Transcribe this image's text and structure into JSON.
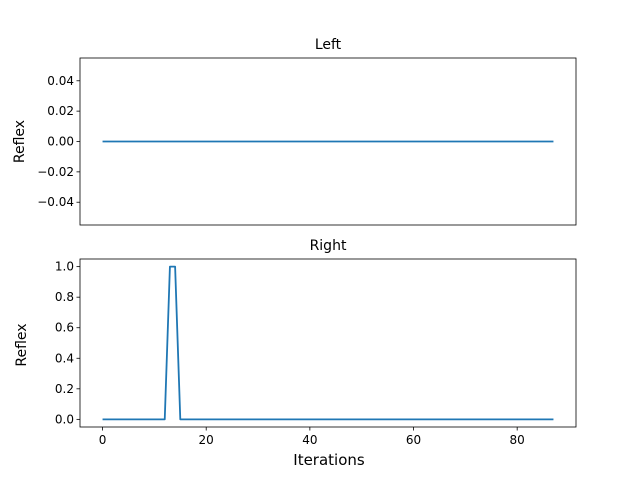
{
  "chart_data": [
    {
      "type": "line",
      "title": "Left",
      "xlabel": "",
      "ylabel": "Reflex",
      "xlim": [
        -4.35,
        91.35
      ],
      "ylim": [
        -0.055,
        0.055
      ],
      "xticks": [],
      "yticks": [
        -0.04,
        -0.02,
        0.0,
        0.02,
        0.04
      ],
      "ytick_labels": [
        "−0.04",
        "−0.02",
        "0.00",
        "0.02",
        "0.04"
      ],
      "grid": false,
      "series": [
        {
          "color": "#1f77b4",
          "x": [
            0,
            87
          ],
          "y": [
            0,
            0
          ]
        }
      ]
    },
    {
      "type": "line",
      "title": "Right",
      "xlabel": "Iterations",
      "ylabel": "Reflex",
      "xlim": [
        -4.35,
        91.35
      ],
      "ylim": [
        -0.05,
        1.05
      ],
      "xticks": [
        0,
        20,
        40,
        60,
        80
      ],
      "xtick_labels": [
        "0",
        "20",
        "40",
        "60",
        "80"
      ],
      "yticks": [
        0.0,
        0.2,
        0.4,
        0.6,
        0.8,
        1.0
      ],
      "ytick_labels": [
        "0.0",
        "0.2",
        "0.4",
        "0.6",
        "0.8",
        "1.0"
      ],
      "grid": false,
      "series": [
        {
          "color": "#1f77b4",
          "x": [
            0,
            12,
            13,
            14,
            15,
            87
          ],
          "y": [
            0,
            0,
            1,
            1,
            0,
            0
          ]
        }
      ]
    }
  ]
}
